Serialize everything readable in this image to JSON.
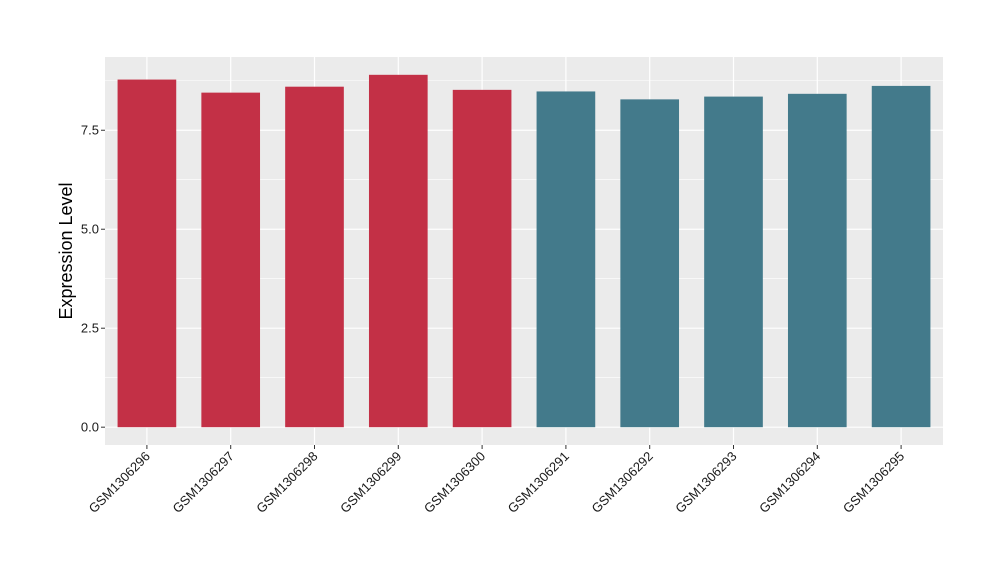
{
  "chart_data": {
    "type": "bar",
    "title": "",
    "xlabel": "",
    "ylabel": "Expression Level",
    "categories": [
      "GSM1306296",
      "GSM1306297",
      "GSM1306298",
      "GSM1306299",
      "GSM1306300",
      "GSM1306291",
      "GSM1306292",
      "GSM1306293",
      "GSM1306294",
      "GSM1306295"
    ],
    "values": [
      8.78,
      8.45,
      8.6,
      8.9,
      8.52,
      8.48,
      8.28,
      8.35,
      8.42,
      8.62
    ],
    "bar_colors": [
      "#C33046",
      "#C33046",
      "#C33046",
      "#C33046",
      "#C33046",
      "#437A8B",
      "#437A8B",
      "#437A8B",
      "#437A8B",
      "#437A8B"
    ],
    "ylim": [
      -0.45,
      9.35
    ],
    "yticks": [
      0.0,
      2.5,
      5.0,
      7.5
    ],
    "ytick_labels": [
      "0.0",
      "2.5",
      "5.0",
      "7.5"
    ],
    "grid": true,
    "legend": "none",
    "panel_background": "#EBEBEB",
    "gridline_color": "#FFFFFF"
  }
}
